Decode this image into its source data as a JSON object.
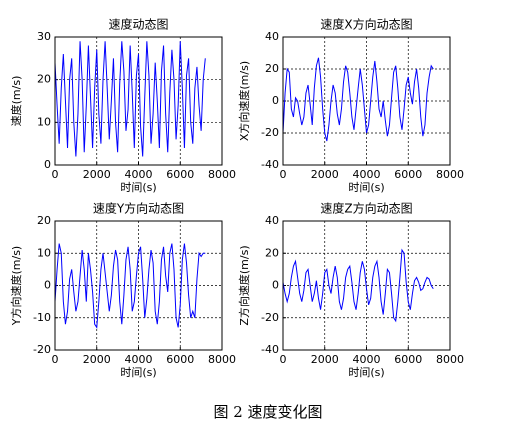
{
  "chart_data": [
    {
      "type": "line",
      "title": "速度动态图",
      "x_label": "时间(s)",
      "y_label": "速度(m/s)",
      "xlim": [
        0,
        8000
      ],
      "xticks": [
        0,
        2000,
        4000,
        6000,
        8000
      ],
      "ylim": [
        0,
        30
      ],
      "yticks": [
        0,
        10,
        20,
        30
      ],
      "grid": true,
      "x": [
        0,
        100,
        200,
        300,
        400,
        500,
        600,
        700,
        800,
        900,
        1000,
        1100,
        1200,
        1300,
        1400,
        1500,
        1600,
        1700,
        1800,
        1900,
        2000,
        2100,
        2200,
        2300,
        2400,
        2500,
        2600,
        2700,
        2800,
        2900,
        3000,
        3100,
        3200,
        3300,
        3400,
        3500,
        3600,
        3700,
        3800,
        3900,
        4000,
        4100,
        4200,
        4300,
        4400,
        4500,
        4600,
        4700,
        4800,
        4900,
        5000,
        5100,
        5200,
        5300,
        5400,
        5500,
        5600,
        5700,
        5800,
        5900,
        6000,
        6100,
        6200,
        6300,
        6400,
        6500,
        6600,
        6700,
        6800,
        6900,
        7000,
        7100,
        7200
      ],
      "series": [
        {
          "color": "#0000ff",
          "values": [
            24,
            14,
            5,
            18,
            26,
            15,
            4,
            20,
            25,
            10,
            2,
            12,
            29,
            20,
            3,
            14,
            28,
            16,
            4,
            18,
            27,
            12,
            5,
            20,
            29,
            18,
            6,
            15,
            25,
            10,
            3,
            19,
            29,
            22,
            8,
            13,
            28,
            17,
            4,
            21,
            26,
            9,
            2,
            16,
            29,
            21,
            5,
            12,
            24,
            15,
            4,
            22,
            28,
            12,
            3,
            17,
            27,
            20,
            6,
            14,
            29,
            18,
            4,
            21,
            25,
            10,
            5,
            18,
            23,
            14,
            8,
            20,
            25
          ]
        }
      ]
    },
    {
      "type": "line",
      "title": "速度X方向动态图",
      "x_label": "时间(s)",
      "y_label": "X方向速度(m/s)",
      "xlim": [
        0,
        8000
      ],
      "xticks": [
        0,
        2000,
        4000,
        6000,
        8000
      ],
      "ylim": [
        -40,
        40
      ],
      "yticks": [
        -40,
        -20,
        0,
        20,
        40
      ],
      "grid": true,
      "x": [
        0,
        100,
        200,
        300,
        400,
        500,
        600,
        700,
        800,
        900,
        1000,
        1100,
        1200,
        1300,
        1400,
        1500,
        1600,
        1700,
        1800,
        1900,
        2000,
        2100,
        2200,
        2300,
        2400,
        2500,
        2600,
        2700,
        2800,
        2900,
        3000,
        3100,
        3200,
        3300,
        3400,
        3500,
        3600,
        3700,
        3800,
        3900,
        4000,
        4100,
        4200,
        4300,
        4400,
        4500,
        4600,
        4700,
        4800,
        4900,
        5000,
        5100,
        5200,
        5300,
        5400,
        5500,
        5600,
        5700,
        5800,
        5900,
        6000,
        6100,
        6200,
        6300,
        6400,
        6500,
        6600,
        6700,
        6800,
        6900,
        7000,
        7100,
        7200
      ],
      "series": [
        {
          "color": "#0000ff",
          "values": [
            -20,
            5,
            20,
            18,
            -5,
            -10,
            2,
            0,
            -8,
            -15,
            -10,
            5,
            10,
            -2,
            -15,
            8,
            22,
            27,
            15,
            -5,
            -20,
            -25,
            -15,
            0,
            10,
            5,
            -8,
            -15,
            -5,
            12,
            22,
            18,
            5,
            -10,
            -18,
            -5,
            8,
            20,
            10,
            -5,
            -20,
            -15,
            0,
            15,
            25,
            12,
            -5,
            -10,
            0,
            -12,
            -22,
            -15,
            2,
            18,
            22,
            8,
            -10,
            -18,
            -5,
            10,
            15,
            5,
            -2,
            12,
            20,
            8,
            -10,
            -22,
            -15,
            5,
            15,
            22,
            20
          ]
        }
      ]
    },
    {
      "type": "line",
      "title": "速度Y方向动态图",
      "x_label": "时间(s)",
      "y_label": "Y方向速度(m/s)",
      "xlim": [
        0,
        8000
      ],
      "xticks": [
        0,
        2000,
        4000,
        6000,
        8000
      ],
      "ylim": [
        -20,
        20
      ],
      "yticks": [
        -20,
        -10,
        0,
        10,
        20
      ],
      "grid": true,
      "x": [
        0,
        100,
        200,
        300,
        400,
        500,
        600,
        700,
        800,
        900,
        1000,
        1100,
        1200,
        1300,
        1400,
        1500,
        1600,
        1700,
        1800,
        1900,
        2000,
        2100,
        2200,
        2300,
        2400,
        2500,
        2600,
        2700,
        2800,
        2900,
        3000,
        3100,
        3200,
        3300,
        3400,
        3500,
        3600,
        3700,
        3800,
        3900,
        4000,
        4100,
        4200,
        4300,
        4400,
        4500,
        4600,
        4700,
        4800,
        4900,
        5000,
        5100,
        5200,
        5300,
        5400,
        5500,
        5600,
        5700,
        5800,
        5900,
        6000,
        6100,
        6200,
        6300,
        6400,
        6500,
        6600,
        6700,
        6800,
        6900,
        7000,
        7100,
        7200
      ],
      "series": [
        {
          "color": "#0000ff",
          "values": [
            -5,
            5,
            13,
            10,
            -5,
            -12,
            -8,
            2,
            5,
            -2,
            -8,
            -5,
            3,
            11,
            5,
            -5,
            10,
            5,
            -2,
            -12,
            -13,
            -5,
            5,
            10,
            4,
            -2,
            -8,
            -3,
            6,
            11,
            8,
            -5,
            -12,
            -3,
            8,
            12,
            5,
            -8,
            -5,
            3,
            10,
            12,
            2,
            -10,
            -4,
            5,
            11,
            7,
            -8,
            -12,
            -5,
            8,
            12,
            3,
            -2,
            10,
            13,
            5,
            -10,
            -13,
            -6,
            8,
            13,
            7,
            -3,
            -10,
            -8,
            -10,
            2,
            10,
            9,
            10,
            10
          ]
        }
      ]
    },
    {
      "type": "line",
      "title": "速度Z方向动态图",
      "x_label": "时间(s)",
      "y_label": "Z方向速度(m/s)",
      "xlim": [
        0,
        8000
      ],
      "xticks": [
        0,
        2000,
        4000,
        6000,
        8000
      ],
      "ylim": [
        -40,
        40
      ],
      "yticks": [
        -40,
        -20,
        0,
        20,
        40
      ],
      "grid": true,
      "x": [
        0,
        100,
        200,
        300,
        400,
        500,
        600,
        700,
        800,
        900,
        1000,
        1100,
        1200,
        1300,
        1400,
        1500,
        1600,
        1700,
        1800,
        1900,
        2000,
        2100,
        2200,
        2300,
        2400,
        2500,
        2600,
        2700,
        2800,
        2900,
        3000,
        3100,
        3200,
        3300,
        3400,
        3500,
        3600,
        3700,
        3800,
        3900,
        4000,
        4100,
        4200,
        4300,
        4400,
        4500,
        4600,
        4700,
        4800,
        4900,
        5000,
        5100,
        5200,
        5300,
        5400,
        5500,
        5600,
        5700,
        5800,
        5900,
        6000,
        6100,
        6200,
        6300,
        6400,
        6500,
        6600,
        6700,
        6800,
        6900,
        7000,
        7100,
        7200
      ],
      "series": [
        {
          "color": "#0000ff",
          "values": [
            2,
            -5,
            -10,
            -5,
            5,
            12,
            15,
            5,
            -5,
            -10,
            -3,
            8,
            10,
            0,
            -10,
            -5,
            3,
            -8,
            -15,
            -5,
            8,
            10,
            0,
            -5,
            5,
            12,
            5,
            -10,
            -15,
            -8,
            5,
            10,
            12,
            2,
            -10,
            -15,
            -5,
            8,
            15,
            10,
            -2,
            -12,
            -8,
            5,
            12,
            15,
            5,
            -10,
            -18,
            -5,
            10,
            8,
            -5,
            -20,
            -22,
            -10,
            5,
            22,
            20,
            2,
            -10,
            -15,
            -5,
            3,
            5,
            2,
            -3,
            -2,
            2,
            5,
            4,
            0,
            -2
          ]
        }
      ]
    }
  ],
  "caption": "图 2  速度变化图"
}
